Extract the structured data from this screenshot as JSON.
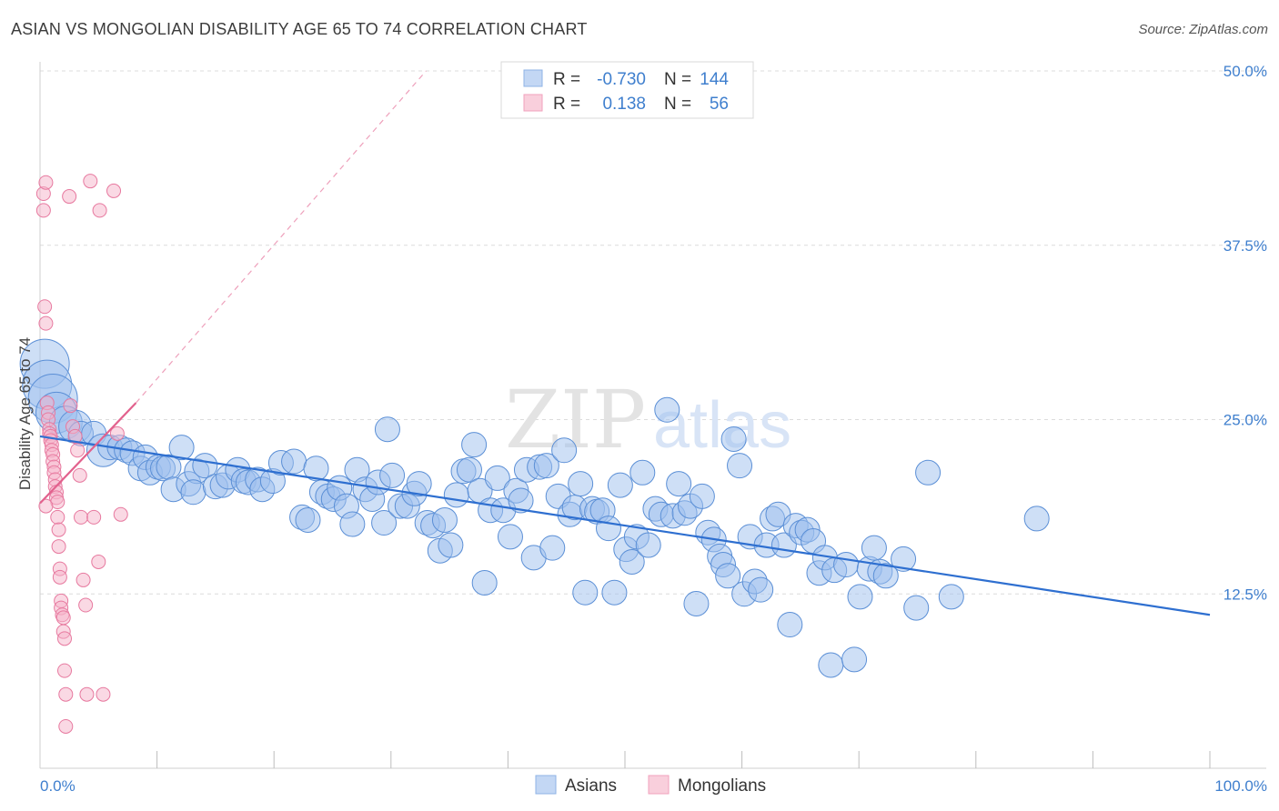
{
  "header": {
    "title": "ASIAN VS MONGOLIAN DISABILITY AGE 65 TO 74 CORRELATION CHART",
    "source": "Source: ZipAtlas.com"
  },
  "watermark": {
    "zip": "ZIP",
    "atlas": "atlas"
  },
  "legend_box": {
    "rows": [
      {
        "r_label": "R =",
        "r_value": "-0.730",
        "n_label": "N =",
        "n_value": "144",
        "color": "#9ec0ee"
      },
      {
        "r_label": "R =",
        "r_value": "0.138",
        "n_label": "N =",
        "n_value": "56",
        "color": "#f5b4c9"
      }
    ]
  },
  "chart_data": {
    "type": "scatter",
    "title": "ASIAN VS MONGOLIAN DISABILITY AGE 65 TO 74 CORRELATION CHART",
    "xlabel": "",
    "ylabel": "Disability Age 65 to 74",
    "xlim": [
      0,
      100
    ],
    "ylim": [
      0,
      50
    ],
    "x_tick_labels": [
      "0.0%",
      "100.0%"
    ],
    "y_ticks": [
      12.5,
      25.0,
      37.5,
      50.0
    ],
    "y_tick_labels": [
      "12.5%",
      "25.0%",
      "37.5%",
      "50.0%"
    ],
    "grid": "horizontal dashed",
    "legend_position": "bottom-center",
    "series": [
      {
        "name": "Asians",
        "color": "#9ec0ee",
        "edge": "#5b8fd6",
        "trend": {
          "x": [
            0,
            100
          ],
          "y": [
            23.8,
            11.0
          ],
          "color": "#2e6fd0"
        },
        "points": [
          [
            0.4,
            29,
            3
          ],
          [
            0.6,
            27.5,
            3
          ],
          [
            1.1,
            26.5,
            3
          ],
          [
            1.4,
            25.5,
            2.5
          ],
          [
            2.2,
            24.8,
            2
          ],
          [
            3,
            24.5,
            2
          ],
          [
            3.5,
            24,
            1.5
          ],
          [
            4.6,
            24,
            1.5
          ],
          [
            5.4,
            22.8,
            2
          ],
          [
            6,
            23,
            1.5
          ],
          [
            6.8,
            23,
            1.5
          ],
          [
            7.4,
            22.8,
            1.5
          ],
          [
            7.9,
            22.6,
            1.5
          ],
          [
            8.6,
            21.5,
            1.5
          ],
          [
            9,
            22.3,
            1.5
          ],
          [
            9.4,
            21.2,
            1.5
          ],
          [
            10.1,
            21.6,
            1.5
          ],
          [
            10.5,
            21.5,
            1.5
          ],
          [
            11,
            21.6,
            1.5
          ],
          [
            11.4,
            20,
            1.5
          ],
          [
            12.1,
            23,
            1.5
          ],
          [
            12.7,
            20.4,
            1.5
          ],
          [
            13.4,
            21.3,
            1.5
          ],
          [
            13.1,
            19.8,
            1.5
          ],
          [
            14.1,
            21.7,
            1.5
          ],
          [
            15,
            20.2,
            1.5
          ],
          [
            15.6,
            20.3,
            1.5
          ],
          [
            16.1,
            20.9,
            1.5
          ],
          [
            16.9,
            21.4,
            1.5
          ],
          [
            17.4,
            20.6,
            1.5
          ],
          [
            17.8,
            20.5,
            1.5
          ],
          [
            18.6,
            20.7,
            1.5
          ],
          [
            19,
            20,
            1.5
          ],
          [
            19.9,
            20.6,
            1.5
          ],
          [
            20.6,
            21.9,
            1.5
          ],
          [
            21.7,
            22,
            1.5
          ],
          [
            22.4,
            18,
            1.5
          ],
          [
            22.9,
            17.8,
            1.5
          ],
          [
            23.6,
            21.5,
            1.5
          ],
          [
            24.1,
            19.8,
            1.5
          ],
          [
            24.6,
            19.5,
            1.5
          ],
          [
            25.1,
            19.3,
            1.5
          ],
          [
            25.6,
            20.1,
            1.5
          ],
          [
            26.2,
            18.8,
            1.5
          ],
          [
            26.7,
            17.5,
            1.5
          ],
          [
            27.1,
            21.4,
            1.5
          ],
          [
            27.8,
            20,
            1.5
          ],
          [
            28.4,
            19.3,
            1.5
          ],
          [
            28.9,
            20.5,
            1.5
          ],
          [
            29.4,
            17.6,
            1.5
          ],
          [
            29.7,
            24.3,
            1.5
          ],
          [
            30.1,
            21,
            1.5
          ],
          [
            30.8,
            18.8,
            1.5
          ],
          [
            31.4,
            18.8,
            1.5
          ],
          [
            32,
            19.7,
            1.5
          ],
          [
            32.4,
            20.4,
            1.5
          ],
          [
            33.1,
            17.6,
            1.5
          ],
          [
            33.6,
            17.4,
            1.5
          ],
          [
            34.2,
            15.6,
            1.5
          ],
          [
            34.6,
            17.8,
            1.5
          ],
          [
            35.1,
            16,
            1.5
          ],
          [
            35.6,
            19.6,
            1.5
          ],
          [
            36.2,
            21.3,
            1.5
          ],
          [
            36.7,
            21.4,
            1.5
          ],
          [
            37.1,
            23.2,
            1.5
          ],
          [
            37.6,
            19.9,
            1.5
          ],
          [
            38,
            13.3,
            1.5
          ],
          [
            38.5,
            18.5,
            1.5
          ],
          [
            39.1,
            20.8,
            1.5
          ],
          [
            39.6,
            18.5,
            1.5
          ],
          [
            40.2,
            16.6,
            1.5
          ],
          [
            40.7,
            19.9,
            1.5
          ],
          [
            41.1,
            19.2,
            1.5
          ],
          [
            41.6,
            21.4,
            1.5
          ],
          [
            42.2,
            15.1,
            1.5
          ],
          [
            42.7,
            21.6,
            1.5
          ],
          [
            43.3,
            21.7,
            1.5
          ],
          [
            43.8,
            15.8,
            1.5
          ],
          [
            44.3,
            19.5,
            1.5
          ],
          [
            44.8,
            22.8,
            1.5
          ],
          [
            45.3,
            18.2,
            1.5
          ],
          [
            45.7,
            18.7,
            1.5
          ],
          [
            46.2,
            20.4,
            1.5
          ],
          [
            46.6,
            12.6,
            1.5
          ],
          [
            47.2,
            18.6,
            1.5
          ],
          [
            47.6,
            18.4,
            1.5
          ],
          [
            48.1,
            18.5,
            1.5
          ],
          [
            48.6,
            17.2,
            1.5
          ],
          [
            49.1,
            12.6,
            1.5
          ],
          [
            49.6,
            20.3,
            1.5
          ],
          [
            50.1,
            15.7,
            1.5
          ],
          [
            50.6,
            14.8,
            1.5
          ],
          [
            51,
            16.6,
            1.5
          ],
          [
            51.5,
            21.2,
            1.5
          ],
          [
            52,
            16,
            1.5
          ],
          [
            52.6,
            18.6,
            1.5
          ],
          [
            53.1,
            18.2,
            1.5
          ],
          [
            53.6,
            25.7,
            1.5
          ],
          [
            54.1,
            18.1,
            1.5
          ],
          [
            54.6,
            20.4,
            1.5
          ],
          [
            55.1,
            18.3,
            1.5
          ],
          [
            55.6,
            18.8,
            1.5
          ],
          [
            56.1,
            11.8,
            1.5
          ],
          [
            56.6,
            19.5,
            1.5
          ],
          [
            57.1,
            16.9,
            1.5
          ],
          [
            57.6,
            16.4,
            1.5
          ],
          [
            58.1,
            15.2,
            1.5
          ],
          [
            58.4,
            14.6,
            1.5
          ],
          [
            58.8,
            13.8,
            1.5
          ],
          [
            59.3,
            23.6,
            1.5
          ],
          [
            59.8,
            21.7,
            1.5
          ],
          [
            60.2,
            12.5,
            1.5
          ],
          [
            60.7,
            16.6,
            1.5
          ],
          [
            61.1,
            13.4,
            1.5
          ],
          [
            61.6,
            12.8,
            1.5
          ],
          [
            62.1,
            16,
            1.5
          ],
          [
            62.6,
            17.9,
            1.5
          ],
          [
            63.1,
            18.2,
            1.5
          ],
          [
            63.6,
            16,
            1.5
          ],
          [
            64.1,
            10.3,
            1.5
          ],
          [
            64.6,
            17.4,
            1.5
          ],
          [
            65.1,
            16.9,
            1.5
          ],
          [
            65.6,
            17.1,
            1.5
          ],
          [
            66.1,
            16.3,
            1.5
          ],
          [
            66.6,
            14,
            1.5
          ],
          [
            67.1,
            15.1,
            1.5
          ],
          [
            67.6,
            7.4,
            1.5
          ],
          [
            67.9,
            14.2,
            1.5
          ],
          [
            68.9,
            14.6,
            1.5
          ],
          [
            69.6,
            7.8,
            1.5
          ],
          [
            70.1,
            12.3,
            1.5
          ],
          [
            70.9,
            14.3,
            1.5
          ],
          [
            71.3,
            15.8,
            1.5
          ],
          [
            71.8,
            14.1,
            1.5
          ],
          [
            72.3,
            13.8,
            1.5
          ],
          [
            73.8,
            15,
            1.5
          ],
          [
            74.9,
            11.5,
            1.5
          ],
          [
            75.9,
            21.2,
            1.5
          ],
          [
            77.9,
            12.3,
            1.5
          ],
          [
            85.2,
            17.9,
            1.5
          ]
        ]
      },
      {
        "name": "Mongolians",
        "color": "#f5b4c9",
        "edge": "#e7799f",
        "trend": {
          "x": [
            0,
            8.2
          ],
          "y": [
            19.0,
            26.2
          ],
          "color": "#e2618d"
        },
        "trend_extension": {
          "x": [
            8.2,
            33
          ],
          "y": [
            26.2,
            50
          ]
        },
        "points": [
          [
            0.3,
            41.2,
            1
          ],
          [
            0.3,
            40,
            1
          ],
          [
            0.4,
            33.1,
            1
          ],
          [
            0.5,
            31.9,
            1
          ],
          [
            0.5,
            42,
            1
          ],
          [
            0.6,
            26.2,
            1
          ],
          [
            0.7,
            25.5,
            1
          ],
          [
            0.7,
            25,
            1
          ],
          [
            0.8,
            24.3,
            1
          ],
          [
            0.8,
            24,
            1
          ],
          [
            0.9,
            23.8,
            1
          ],
          [
            0.9,
            23.5,
            1
          ],
          [
            1,
            23.2,
            1
          ],
          [
            1,
            22.8,
            1
          ],
          [
            1.1,
            22.5,
            1
          ],
          [
            1.1,
            22,
            1
          ],
          [
            1.2,
            21.6,
            1
          ],
          [
            1.2,
            21.2,
            1
          ],
          [
            1.3,
            20.7,
            1
          ],
          [
            1.3,
            20.2,
            1
          ],
          [
            1.4,
            19.8,
            1
          ],
          [
            1.4,
            19.4,
            1
          ],
          [
            1.5,
            19.1,
            1
          ],
          [
            1.5,
            18,
            1
          ],
          [
            1.6,
            17.1,
            1
          ],
          [
            1.6,
            15.9,
            1
          ],
          [
            1.7,
            14.3,
            1
          ],
          [
            1.7,
            13.7,
            1
          ],
          [
            1.8,
            12,
            1
          ],
          [
            1.8,
            11.5,
            1
          ],
          [
            1.9,
            11,
            1
          ],
          [
            2,
            10.8,
            1
          ],
          [
            2,
            9.8,
            1
          ],
          [
            2.1,
            9.3,
            1
          ],
          [
            2.1,
            7,
            1
          ],
          [
            2.2,
            5.3,
            1
          ],
          [
            2.2,
            3,
            1
          ],
          [
            2.5,
            41,
            1
          ],
          [
            2.6,
            26,
            1
          ],
          [
            2.8,
            24.5,
            1
          ],
          [
            3,
            23.8,
            1
          ],
          [
            3.2,
            22.8,
            1
          ],
          [
            3.4,
            21,
            1
          ],
          [
            3.5,
            18,
            1
          ],
          [
            3.7,
            13.5,
            1
          ],
          [
            3.9,
            11.7,
            1
          ],
          [
            4,
            5.3,
            1
          ],
          [
            4.3,
            42.1,
            1
          ],
          [
            4.6,
            18,
            1
          ],
          [
            5,
            14.8,
            1
          ],
          [
            5.1,
            40,
            1
          ],
          [
            5.4,
            5.3,
            1
          ],
          [
            6.3,
            41.4,
            1
          ],
          [
            6.6,
            24,
            1
          ],
          [
            6.9,
            18.2,
            1
          ],
          [
            0.5,
            18.8,
            1
          ]
        ]
      }
    ]
  }
}
